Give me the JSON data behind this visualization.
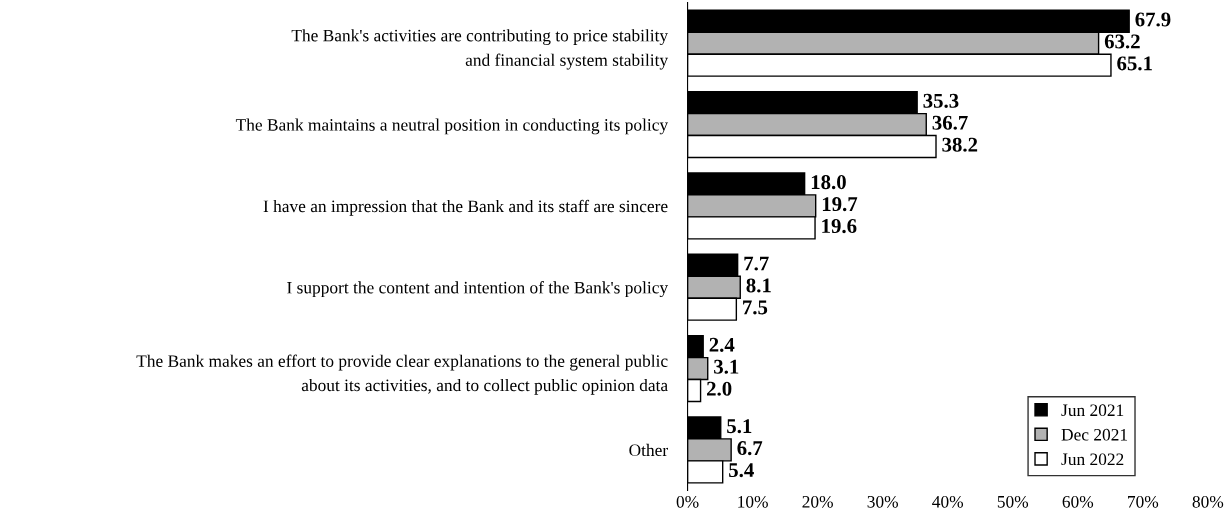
{
  "chart_data": {
    "type": "bar",
    "orientation": "horizontal",
    "categories": [
      "The Bank's activities are contributing to price stability\nand financial system stability",
      "The Bank maintains a neutral position in conducting its policy",
      "I have an impression that the Bank and its staff are sincere",
      "I support the content and intention of the Bank's policy",
      "The Bank makes an effort to provide clear explanations to the general public\nabout its activities, and to collect public opinion data",
      "Other"
    ],
    "series": [
      {
        "name": "Jun 2021",
        "color": "#000000",
        "values": [
          67.9,
          35.3,
          18.0,
          7.7,
          2.4,
          5.1
        ],
        "value_labels": [
          "67.9",
          "35.3",
          "18.0",
          "7.7",
          "2.4",
          "5.1"
        ]
      },
      {
        "name": "Dec 2021",
        "color": "#b2b2b2",
        "values": [
          63.2,
          36.7,
          19.7,
          8.1,
          3.1,
          6.7
        ],
        "value_labels": [
          "63.2",
          "36.7",
          "19.7",
          "8.1",
          "3.1",
          "6.7"
        ]
      },
      {
        "name": "Jun 2022",
        "color": "#ffffff",
        "values": [
          65.1,
          38.2,
          19.6,
          7.5,
          2.0,
          5.4
        ],
        "value_labels": [
          "65.1",
          "38.2",
          "19.6",
          "7.5",
          "2.0",
          "5.4"
        ]
      }
    ],
    "xlim": [
      0,
      80
    ],
    "xticks": [
      {
        "value": 0,
        "label": "0%"
      },
      {
        "value": 10,
        "label": "10%"
      },
      {
        "value": 20,
        "label": "20%"
      },
      {
        "value": 30,
        "label": "30%"
      },
      {
        "value": 40,
        "label": "40%"
      },
      {
        "value": 50,
        "label": "50%"
      },
      {
        "value": 60,
        "label": "60%"
      },
      {
        "value": 70,
        "label": "70%"
      },
      {
        "value": 80,
        "label": "80%"
      }
    ],
    "legend": "bottom right",
    "grid": false
  }
}
